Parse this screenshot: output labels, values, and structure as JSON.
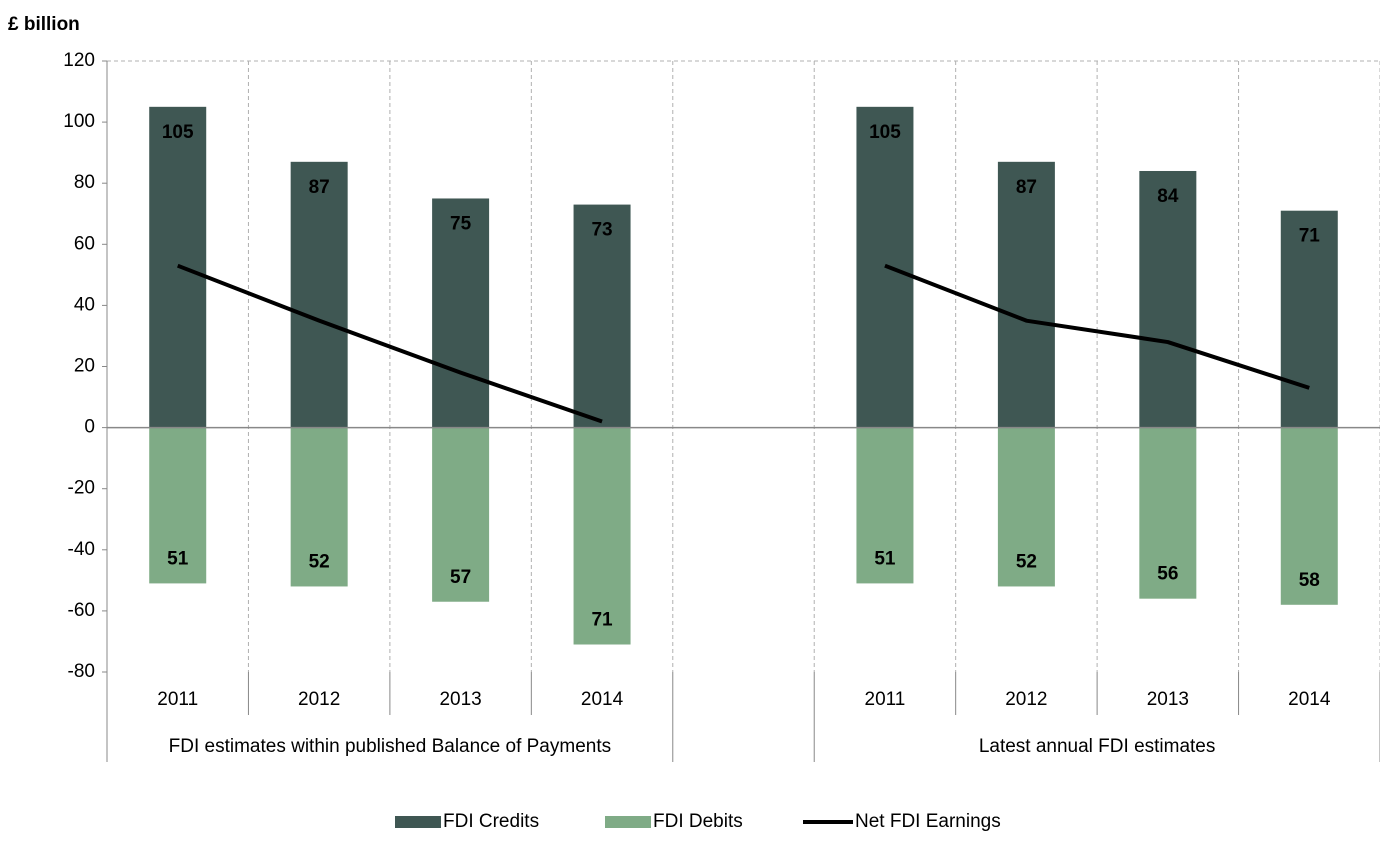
{
  "chart_data": {
    "type": "bar",
    "title": "£ billion",
    "categories": [
      "2011",
      "2012",
      "2013",
      "2014",
      null,
      "2011",
      "2012",
      "2013",
      "2014"
    ],
    "groups": [
      "FDI estimates within published Balance of Payments",
      "Latest annual FDI estimates"
    ],
    "series": [
      {
        "name": "FDI Credits",
        "type": "bar",
        "color": "#3f5753",
        "values": [
          105,
          87,
          75,
          73,
          null,
          105,
          87,
          84,
          71
        ]
      },
      {
        "name": "FDI Debits",
        "type": "bar",
        "color": "#7fab86",
        "values": [
          -51,
          -52,
          -57,
          -71,
          null,
          -51,
          -52,
          -56,
          -58
        ],
        "value_labels": [
          "51",
          "52",
          "57",
          "71",
          null,
          "51",
          "52",
          "56",
          "58"
        ]
      },
      {
        "name": "Net FDI Earnings",
        "type": "line",
        "color": "#000000",
        "values": [
          53,
          35,
          18,
          2,
          null,
          53,
          35,
          28,
          13
        ]
      }
    ],
    "ylim": [
      -80,
      120
    ],
    "yticks": [
      -80,
      -60,
      -40,
      -20,
      0,
      20,
      40,
      60,
      80,
      100,
      120
    ],
    "legend": "bottom"
  }
}
